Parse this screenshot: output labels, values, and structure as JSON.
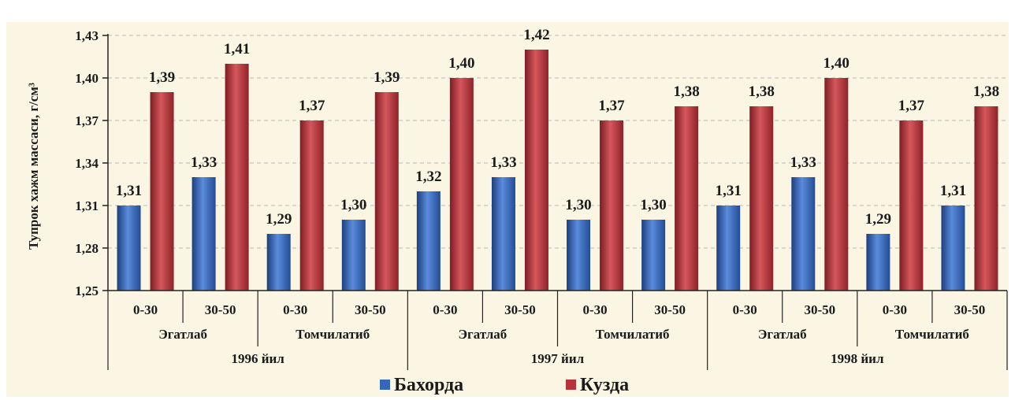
{
  "chart_data": {
    "type": "bar",
    "ylabel": "Тупрок хажм массаси, г/см³",
    "ylim": [
      1.25,
      1.43
    ],
    "yticks": [
      "1,25",
      "1,28",
      "1,31",
      "1,34",
      "1,37",
      "1,40",
      "1,43"
    ],
    "ytick_values": [
      1.25,
      1.28,
      1.31,
      1.34,
      1.37,
      1.4,
      1.43
    ],
    "grid": true,
    "legend_position": "bottom",
    "years": [
      "1996 йил",
      "1997 йил",
      "1998 йил"
    ],
    "methods": [
      "Эгатлаб",
      "Томчилатиб",
      "Эгатлаб",
      "Томчилатиб",
      "Эгатлаб",
      "Томчилатиб"
    ],
    "categories": [
      "0-30",
      "30-50",
      "0-30",
      "30-50",
      "0-30",
      "30-50",
      "0-30",
      "30-50",
      "0-30",
      "30-50",
      "0-30",
      "30-50"
    ],
    "series": [
      {
        "name": "Бахорда",
        "color": "#3566b8",
        "values": [
          1.31,
          1.33,
          1.29,
          1.3,
          1.32,
          1.33,
          1.3,
          1.3,
          1.31,
          1.33,
          1.29,
          1.31
        ],
        "labels": [
          "1,31",
          "1,33",
          "1,29",
          "1,30",
          "1,32",
          "1,33",
          "1,30",
          "1,30",
          "1,31",
          "1,33",
          "1,29",
          "1,31"
        ]
      },
      {
        "name": "Кузда",
        "color": "#b8343a",
        "values": [
          1.39,
          1.41,
          1.37,
          1.39,
          1.4,
          1.42,
          1.37,
          1.38,
          1.38,
          1.4,
          1.37,
          1.38
        ],
        "labels": [
          "1,39",
          "1,41",
          "1,37",
          "1,39",
          "1,40",
          "1,42",
          "1,37",
          "1,38",
          "1,38",
          "1,40",
          "1,37",
          "1,38"
        ]
      }
    ]
  }
}
